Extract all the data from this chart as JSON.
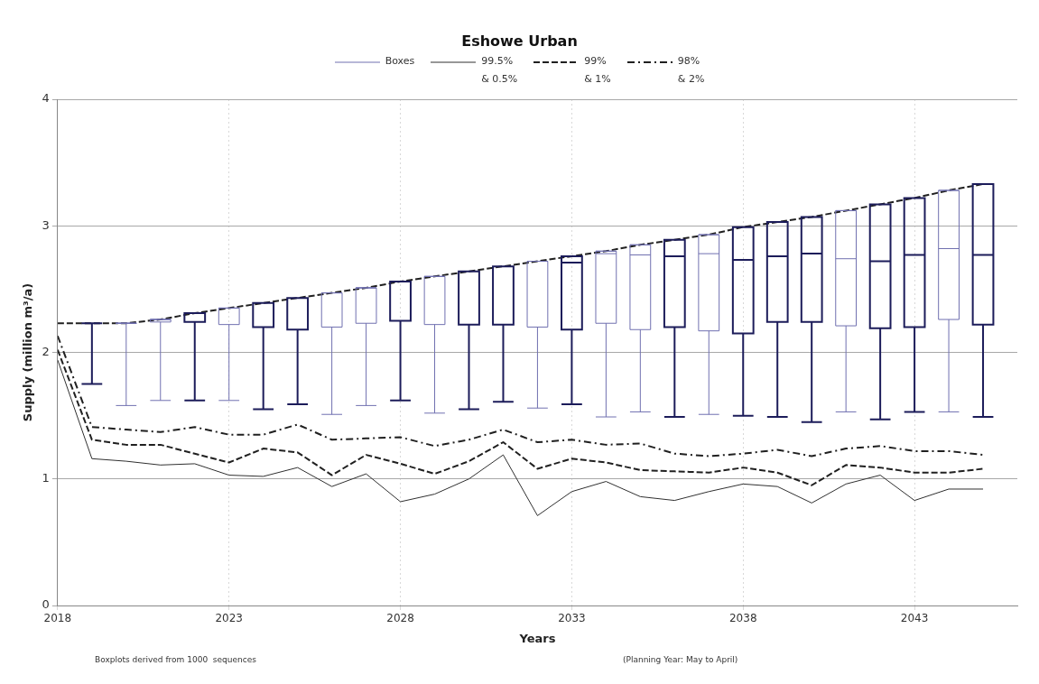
{
  "chart_data": {
    "type": "box",
    "title": "Eshowe Urban",
    "xlabel": "Years",
    "ylabel": "Supply (million m³/a)",
    "xlim": [
      2018,
      2046
    ],
    "xticks": [
      2018,
      2023,
      2028,
      2033,
      2038,
      2043
    ],
    "ylim": [
      0,
      4
    ],
    "yticks": [
      0,
      1,
      2,
      3,
      4
    ],
    "grid": true,
    "legend": "top",
    "marker": "none",
    "annotations": [
      "Boxplots derived from 1000  sequences",
      "(Planning Year: May to April)"
    ],
    "series": [
      {
        "type": "box",
        "name": "Boxes",
        "color": "#7070b0",
        "x": [
          2019,
          2020,
          2021,
          2022,
          2023,
          2024,
          2025,
          2026,
          2027,
          2028,
          2029,
          2030,
          2031,
          2032,
          2033,
          2034,
          2035,
          2036,
          2037,
          2038,
          2039,
          2040,
          2041,
          2042,
          2043,
          2044,
          2045
        ],
        "colors": [
          "#1c1c5a",
          "#7070b0",
          "#7070b0",
          "#1c1c5a",
          "#7070b0",
          "#1c1c5a",
          "#1c1c5a",
          "#7070b0",
          "#7070b0",
          "#1c1c5a",
          "#7070b0",
          "#1c1c5a",
          "#1c1c5a",
          "#7070b0",
          "#1c1c5a",
          "#7070b0",
          "#7070b0",
          "#1c1c5a",
          "#7070b0",
          "#1c1c5a",
          "#1c1c5a",
          "#1c1c5a",
          "#7070b0",
          "#1c1c5a",
          "#1c1c5a",
          "#7070b0",
          "#1c1c5a"
        ],
        "boxes": [
          {
            "low": 1.75,
            "q1": 2.23,
            "median": 2.23,
            "q3": 2.23,
            "high": 2.23
          },
          {
            "low": 1.58,
            "q1": 2.23,
            "median": 2.23,
            "q3": 2.23,
            "high": 2.23
          },
          {
            "low": 1.62,
            "q1": 2.24,
            "median": 2.26,
            "q3": 2.26,
            "high": 2.26
          },
          {
            "low": 1.62,
            "q1": 2.24,
            "median": 2.31,
            "q3": 2.31,
            "high": 2.31
          },
          {
            "low": 1.62,
            "q1": 2.22,
            "median": 2.35,
            "q3": 2.35,
            "high": 2.35
          },
          {
            "low": 1.55,
            "q1": 2.2,
            "median": 2.39,
            "q3": 2.39,
            "high": 2.39
          },
          {
            "low": 1.59,
            "q1": 2.18,
            "median": 2.43,
            "q3": 2.43,
            "high": 2.43
          },
          {
            "low": 1.51,
            "q1": 2.2,
            "median": 2.47,
            "q3": 2.47,
            "high": 2.47
          },
          {
            "low": 1.58,
            "q1": 2.23,
            "median": 2.51,
            "q3": 2.51,
            "high": 2.51
          },
          {
            "low": 1.62,
            "q1": 2.25,
            "median": 2.56,
            "q3": 2.56,
            "high": 2.56
          },
          {
            "low": 1.52,
            "q1": 2.22,
            "median": 2.6,
            "q3": 2.6,
            "high": 2.6
          },
          {
            "low": 1.55,
            "q1": 2.22,
            "median": 2.64,
            "q3": 2.64,
            "high": 2.64
          },
          {
            "low": 1.61,
            "q1": 2.22,
            "median": 2.68,
            "q3": 2.68,
            "high": 2.68
          },
          {
            "low": 1.56,
            "q1": 2.2,
            "median": 2.72,
            "q3": 2.72,
            "high": 2.72
          },
          {
            "low": 1.59,
            "q1": 2.18,
            "median": 2.71,
            "q3": 2.76,
            "high": 2.76
          },
          {
            "low": 1.49,
            "q1": 2.23,
            "median": 2.78,
            "q3": 2.8,
            "high": 2.8
          },
          {
            "low": 1.53,
            "q1": 2.18,
            "median": 2.77,
            "q3": 2.85,
            "high": 2.85
          },
          {
            "low": 1.49,
            "q1": 2.2,
            "median": 2.76,
            "q3": 2.89,
            "high": 2.89
          },
          {
            "low": 1.51,
            "q1": 2.17,
            "median": 2.78,
            "q3": 2.93,
            "high": 2.93
          },
          {
            "low": 1.5,
            "q1": 2.15,
            "median": 2.73,
            "q3": 2.99,
            "high": 2.99
          },
          {
            "low": 1.49,
            "q1": 2.24,
            "median": 2.76,
            "q3": 3.03,
            "high": 3.03
          },
          {
            "low": 1.45,
            "q1": 2.24,
            "median": 2.78,
            "q3": 3.07,
            "high": 3.07
          },
          {
            "low": 1.53,
            "q1": 2.21,
            "median": 2.74,
            "q3": 3.12,
            "high": 3.12
          },
          {
            "low": 1.47,
            "q1": 2.19,
            "median": 2.72,
            "q3": 3.17,
            "high": 3.17
          },
          {
            "low": 1.53,
            "q1": 2.2,
            "median": 2.77,
            "q3": 3.22,
            "high": 3.22
          },
          {
            "low": 1.53,
            "q1": 2.26,
            "median": 2.82,
            "q3": 3.28,
            "high": 3.28
          },
          {
            "low": 1.49,
            "q1": 2.22,
            "median": 2.77,
            "q3": 3.33,
            "high": 3.33
          }
        ]
      },
      {
        "type": "line",
        "name": "99.5%\n& 0.5%",
        "color": "#303030",
        "line_style": "solid",
        "x": [
          2018,
          2019,
          2020,
          2021,
          2022,
          2023,
          2024,
          2025,
          2026,
          2027,
          2028,
          2029,
          2030,
          2031,
          2032,
          2033,
          2034,
          2035,
          2036,
          2037,
          2038,
          2039,
          2040,
          2041,
          2042,
          2043,
          2044,
          2045
        ],
        "values": [
          1.94,
          1.16,
          1.14,
          1.11,
          1.12,
          1.03,
          1.02,
          1.09,
          0.94,
          1.04,
          0.82,
          0.88,
          1.0,
          1.19,
          0.71,
          0.9,
          0.98,
          0.86,
          0.83,
          0.9,
          0.96,
          0.94,
          0.81,
          0.96,
          1.03,
          0.83,
          0.92,
          0.92
        ]
      },
      {
        "type": "line",
        "name": "99%\n& 1%",
        "color": "#202020",
        "line_style": "dashed",
        "x": [
          2018,
          2019,
          2020,
          2021,
          2022,
          2023,
          2024,
          2025,
          2026,
          2027,
          2028,
          2029,
          2030,
          2031,
          2032,
          2033,
          2034,
          2035,
          2036,
          2037,
          2038,
          2039,
          2040,
          2041,
          2042,
          2043,
          2044,
          2045
        ],
        "values": [
          2.02,
          1.31,
          1.27,
          1.27,
          1.2,
          1.13,
          1.24,
          1.21,
          1.03,
          1.19,
          1.12,
          1.04,
          1.14,
          1.29,
          1.08,
          1.16,
          1.13,
          1.07,
          1.06,
          1.05,
          1.09,
          1.05,
          0.95,
          1.11,
          1.09,
          1.05,
          1.05,
          1.08
        ]
      },
      {
        "type": "line",
        "name": "98%\n& 2%",
        "color": "#202020",
        "line_style": "dashdot",
        "x": [
          2018,
          2019,
          2020,
          2021,
          2022,
          2023,
          2024,
          2025,
          2026,
          2027,
          2028,
          2029,
          2030,
          2031,
          2032,
          2033,
          2034,
          2035,
          2036,
          2037,
          2038,
          2039,
          2040,
          2041,
          2042,
          2043,
          2044,
          2045
        ],
        "values": [
          2.13,
          1.41,
          1.39,
          1.37,
          1.41,
          1.35,
          1.35,
          1.43,
          1.31,
          1.32,
          1.33,
          1.26,
          1.31,
          1.39,
          1.29,
          1.31,
          1.27,
          1.28,
          1.2,
          1.18,
          1.2,
          1.23,
          1.18,
          1.24,
          1.26,
          1.22,
          1.22,
          1.19
        ]
      },
      {
        "type": "line",
        "color": "#202020",
        "line_style": "dashed",
        "x": [
          2018,
          2019,
          2020,
          2021,
          2022,
          2023,
          2024,
          2025,
          2026,
          2027,
          2028,
          2029,
          2030,
          2031,
          2032,
          2033,
          2034,
          2035,
          2036,
          2037,
          2038,
          2039,
          2040,
          2041,
          2042,
          2043,
          2044,
          2045
        ],
        "values": [
          2.23,
          2.23,
          2.23,
          2.26,
          2.31,
          2.35,
          2.39,
          2.43,
          2.47,
          2.51,
          2.56,
          2.6,
          2.64,
          2.68,
          2.72,
          2.76,
          2.8,
          2.85,
          2.89,
          2.93,
          2.99,
          3.03,
          3.07,
          3.12,
          3.17,
          3.22,
          3.28,
          3.33
        ]
      }
    ]
  }
}
